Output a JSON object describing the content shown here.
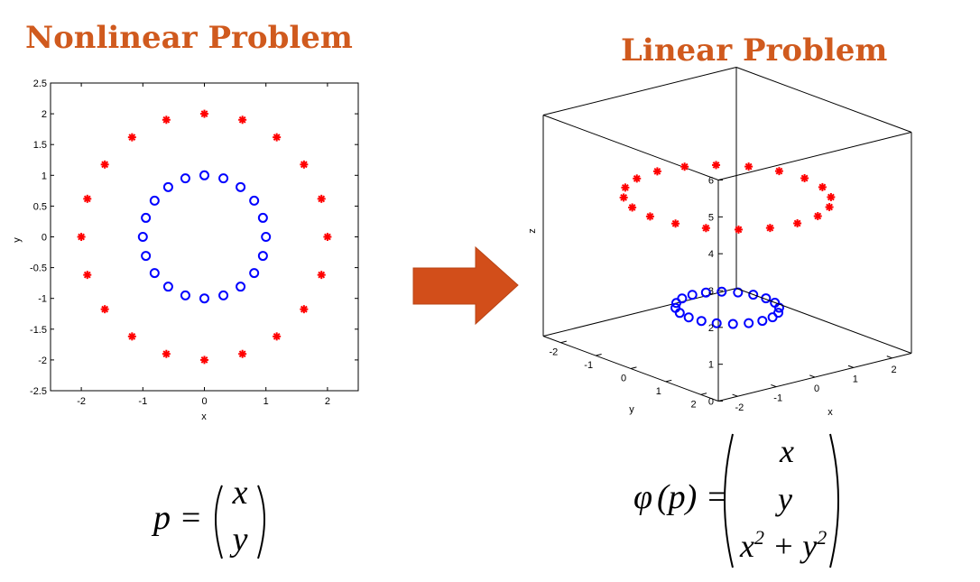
{
  "titles": {
    "left": "Nonlinear Problem",
    "right": "Linear Problem"
  },
  "colors": {
    "title": "#d05a1e",
    "inner": "#0000ff",
    "outer": "#ff0000",
    "arrow": "#d24e1a"
  },
  "chart_data": [
    {
      "type": "scatter",
      "xlabel": "x",
      "ylabel": "y",
      "xlim": [
        -2.5,
        2.5
      ],
      "ylim": [
        -2.5,
        2.5
      ],
      "xticks": [
        "-2",
        "-1",
        "0",
        "1",
        "2"
      ],
      "yticks": [
        "2.5",
        "2",
        "1.5",
        "1",
        "0.5",
        "0",
        "-0.5",
        "-1",
        "-1.5",
        "-2",
        "-2.5"
      ],
      "series": [
        {
          "marker": "circle",
          "color": "#0000ff",
          "radius": 1,
          "count": 20
        },
        {
          "marker": "asterisk",
          "color": "#ff0000",
          "radius": 2,
          "count": 20
        }
      ]
    },
    {
      "type": "scatter3d",
      "xlabel": "x",
      "ylabel": "y",
      "zlabel": "z",
      "zlim": [
        0,
        6
      ],
      "xticks": [
        "-2",
        "-1",
        "0",
        "1",
        "2"
      ],
      "yticks": [
        "2",
        "1",
        "0",
        "-1",
        "-2"
      ],
      "zticks": [
        "0",
        "1",
        "2",
        "3",
        "4",
        "5",
        "6"
      ],
      "series": [
        {
          "marker": "circle",
          "color": "#0000ff",
          "radius": 1,
          "z": 1,
          "count": 20
        },
        {
          "marker": "asterisk",
          "color": "#ff0000",
          "radius": 2,
          "z": 4,
          "count": 20
        }
      ]
    }
  ],
  "formulas": {
    "left": {
      "lhs": "p =",
      "top": "x",
      "bottom": "y"
    },
    "right": {
      "lhs_phi": "φ",
      "lhs_rest": "(p) =",
      "row1": "x",
      "row2": "y",
      "row3a": "x",
      "row3exp1": "2",
      "row3plus": " + y",
      "row3exp2": "2"
    }
  }
}
